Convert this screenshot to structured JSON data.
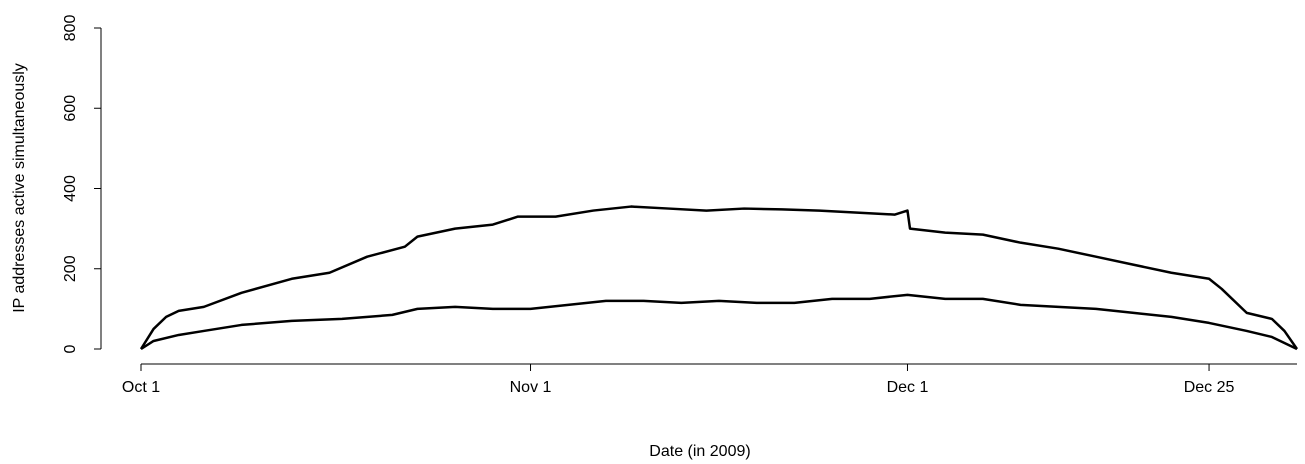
{
  "chart_data": {
    "type": "line",
    "xlabel": "Date (in 2009)",
    "ylabel": "IP addresses active simultaneously",
    "xlim": [
      0,
      92
    ],
    "xticks": [
      {
        "value": 0,
        "label": "Oct 1"
      },
      {
        "value": 31,
        "label": "Nov 1"
      },
      {
        "value": 61,
        "label": "Dec 1"
      },
      {
        "value": 85,
        "label": "Dec 25"
      }
    ],
    "ylim": [
      0,
      800
    ],
    "yticks": [
      0,
      200,
      400,
      600,
      800
    ],
    "series": [
      {
        "color": "#000000",
        "x": [
          0,
          1,
          2,
          3,
          5,
          8,
          12,
          15,
          18,
          21,
          22,
          25,
          28,
          30,
          33,
          36,
          39,
          42,
          45,
          48,
          51,
          54,
          57,
          60,
          61,
          61.2,
          64,
          67,
          70,
          73,
          76,
          79,
          82,
          85,
          86,
          88,
          90,
          91,
          92
        ],
        "values": [
          0,
          50,
          80,
          95,
          105,
          140,
          175,
          190,
          230,
          255,
          280,
          300,
          310,
          330,
          330,
          345,
          355,
          350,
          345,
          350,
          348,
          345,
          340,
          335,
          345,
          300,
          290,
          285,
          265,
          250,
          230,
          210,
          190,
          175,
          150,
          90,
          75,
          45,
          0
        ]
      },
      {
        "color": "#000000",
        "x": [
          0,
          1,
          3,
          5,
          8,
          12,
          16,
          20,
          22,
          25,
          28,
          31,
          34,
          37,
          40,
          43,
          46,
          49,
          52,
          55,
          58,
          61,
          64,
          67,
          70,
          73,
          76,
          79,
          82,
          85,
          88,
          90,
          92
        ],
        "values": [
          0,
          20,
          35,
          45,
          60,
          70,
          75,
          85,
          100,
          105,
          100,
          100,
          110,
          120,
          120,
          115,
          120,
          115,
          115,
          125,
          125,
          135,
          125,
          125,
          110,
          105,
          100,
          90,
          80,
          65,
          45,
          30,
          0
        ]
      }
    ]
  }
}
